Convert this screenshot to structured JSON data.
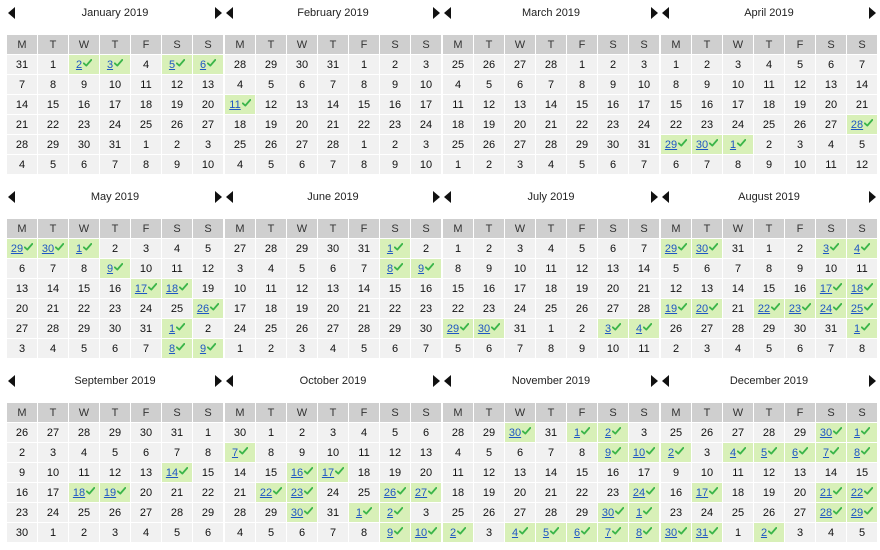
{
  "weekdays": [
    "M",
    "T",
    "W",
    "T",
    "F",
    "S",
    "S"
  ],
  "months": [
    {
      "title": "January 2019",
      "weeks": [
        [
          "31",
          "1",
          "2",
          "3",
          "4",
          "5",
          "6"
        ],
        [
          "7",
          "8",
          "9",
          "10",
          "11",
          "12",
          "13"
        ],
        [
          "14",
          "15",
          "16",
          "17",
          "18",
          "19",
          "20"
        ],
        [
          "21",
          "22",
          "23",
          "24",
          "25",
          "26",
          "27"
        ],
        [
          "28",
          "29",
          "30",
          "31",
          "1",
          "2",
          "3"
        ],
        [
          "4",
          "5",
          "6",
          "7",
          "8",
          "9",
          "10"
        ]
      ],
      "available": [
        "0-2",
        "0-3",
        "0-5",
        "0-6"
      ]
    },
    {
      "title": "February 2019",
      "weeks": [
        [
          "28",
          "29",
          "30",
          "31",
          "1",
          "2",
          "3"
        ],
        [
          "4",
          "5",
          "6",
          "7",
          "8",
          "9",
          "10"
        ],
        [
          "11",
          "12",
          "13",
          "14",
          "15",
          "16",
          "17"
        ],
        [
          "18",
          "19",
          "20",
          "21",
          "22",
          "23",
          "24"
        ],
        [
          "25",
          "26",
          "27",
          "28",
          "1",
          "2",
          "3"
        ],
        [
          "4",
          "5",
          "6",
          "7",
          "8",
          "9",
          "10"
        ]
      ],
      "available": [
        "2-0"
      ]
    },
    {
      "title": "March 2019",
      "weeks": [
        [
          "25",
          "26",
          "27",
          "28",
          "1",
          "2",
          "3"
        ],
        [
          "4",
          "5",
          "6",
          "7",
          "8",
          "9",
          "10"
        ],
        [
          "11",
          "12",
          "13",
          "14",
          "15",
          "16",
          "17"
        ],
        [
          "18",
          "19",
          "20",
          "21",
          "22",
          "23",
          "24"
        ],
        [
          "25",
          "26",
          "27",
          "28",
          "29",
          "30",
          "31"
        ],
        [
          "1",
          "2",
          "3",
          "4",
          "5",
          "6",
          "7"
        ]
      ],
      "available": []
    },
    {
      "title": "April 2019",
      "weeks": [
        [
          "1",
          "2",
          "3",
          "4",
          "5",
          "6",
          "7"
        ],
        [
          "8",
          "9",
          "10",
          "11",
          "12",
          "13",
          "14"
        ],
        [
          "15",
          "16",
          "17",
          "18",
          "19",
          "20",
          "21"
        ],
        [
          "22",
          "23",
          "24",
          "25",
          "26",
          "27",
          "28"
        ],
        [
          "29",
          "30",
          "1",
          "2",
          "3",
          "4",
          "5"
        ],
        [
          "6",
          "7",
          "8",
          "9",
          "10",
          "11",
          "12"
        ]
      ],
      "available": [
        "3-6",
        "4-0",
        "4-1",
        "4-2"
      ]
    },
    {
      "title": "May 2019",
      "weeks": [
        [
          "29",
          "30",
          "1",
          "2",
          "3",
          "4",
          "5"
        ],
        [
          "6",
          "7",
          "8",
          "9",
          "10",
          "11",
          "12"
        ],
        [
          "13",
          "14",
          "15",
          "16",
          "17",
          "18",
          "19"
        ],
        [
          "20",
          "21",
          "22",
          "23",
          "24",
          "25",
          "26"
        ],
        [
          "27",
          "28",
          "29",
          "30",
          "31",
          "1",
          "2"
        ],
        [
          "3",
          "4",
          "5",
          "6",
          "7",
          "8",
          "9"
        ]
      ],
      "available": [
        "0-0",
        "0-1",
        "0-2",
        "1-3",
        "2-4",
        "2-5",
        "3-6",
        "4-5",
        "5-5",
        "5-6"
      ]
    },
    {
      "title": "June 2019",
      "weeks": [
        [
          "27",
          "28",
          "29",
          "30",
          "31",
          "1",
          "2"
        ],
        [
          "3",
          "4",
          "5",
          "6",
          "7",
          "8",
          "9"
        ],
        [
          "10",
          "11",
          "12",
          "13",
          "14",
          "15",
          "16"
        ],
        [
          "17",
          "18",
          "19",
          "20",
          "21",
          "22",
          "23"
        ],
        [
          "24",
          "25",
          "26",
          "27",
          "28",
          "29",
          "30"
        ],
        [
          "1",
          "2",
          "3",
          "4",
          "5",
          "6",
          "7"
        ]
      ],
      "available": [
        "0-5",
        "1-5",
        "1-6"
      ]
    },
    {
      "title": "July 2019",
      "weeks": [
        [
          "1",
          "2",
          "3",
          "4",
          "5",
          "6",
          "7"
        ],
        [
          "8",
          "9",
          "10",
          "11",
          "12",
          "13",
          "14"
        ],
        [
          "15",
          "16",
          "17",
          "18",
          "19",
          "20",
          "21"
        ],
        [
          "22",
          "23",
          "24",
          "25",
          "26",
          "27",
          "28"
        ],
        [
          "29",
          "30",
          "31",
          "1",
          "2",
          "3",
          "4"
        ],
        [
          "5",
          "6",
          "7",
          "8",
          "9",
          "10",
          "11"
        ]
      ],
      "available": [
        "4-0",
        "4-1",
        "4-5",
        "4-6"
      ]
    },
    {
      "title": "August 2019",
      "weeks": [
        [
          "29",
          "30",
          "31",
          "1",
          "2",
          "3",
          "4"
        ],
        [
          "5",
          "6",
          "7",
          "8",
          "9",
          "10",
          "11"
        ],
        [
          "12",
          "13",
          "14",
          "15",
          "16",
          "17",
          "18"
        ],
        [
          "19",
          "20",
          "21",
          "22",
          "23",
          "24",
          "25"
        ],
        [
          "26",
          "27",
          "28",
          "29",
          "30",
          "31",
          "1"
        ],
        [
          "2",
          "3",
          "4",
          "5",
          "6",
          "7",
          "8"
        ]
      ],
      "available": [
        "0-0",
        "0-1",
        "0-5",
        "0-6",
        "2-5",
        "2-6",
        "3-0",
        "3-1",
        "3-3",
        "3-4",
        "3-5",
        "3-6",
        "4-6"
      ]
    },
    {
      "title": "September 2019",
      "weeks": [
        [
          "26",
          "27",
          "28",
          "29",
          "30",
          "31",
          "1"
        ],
        [
          "2",
          "3",
          "4",
          "5",
          "6",
          "7",
          "8"
        ],
        [
          "9",
          "10",
          "11",
          "12",
          "13",
          "14",
          "15"
        ],
        [
          "16",
          "17",
          "18",
          "19",
          "20",
          "21",
          "22"
        ],
        [
          "23",
          "24",
          "25",
          "26",
          "27",
          "28",
          "29"
        ],
        [
          "30",
          "1",
          "2",
          "3",
          "4",
          "5",
          "6"
        ]
      ],
      "available": [
        "2-5",
        "3-2",
        "3-3"
      ]
    },
    {
      "title": "October 2019",
      "weeks": [
        [
          "30",
          "1",
          "2",
          "3",
          "4",
          "5",
          "6"
        ],
        [
          "7",
          "8",
          "9",
          "10",
          "11",
          "12",
          "13"
        ],
        [
          "14",
          "15",
          "16",
          "17",
          "18",
          "19",
          "20"
        ],
        [
          "21",
          "22",
          "23",
          "24",
          "25",
          "26",
          "27"
        ],
        [
          "28",
          "29",
          "30",
          "31",
          "1",
          "2",
          "3"
        ],
        [
          "4",
          "5",
          "6",
          "7",
          "8",
          "9",
          "10"
        ]
      ],
      "available": [
        "1-0",
        "2-2",
        "2-3",
        "3-1",
        "3-2",
        "3-5",
        "3-6",
        "4-2",
        "4-4",
        "4-5",
        "5-5",
        "5-6"
      ]
    },
    {
      "title": "November 2019",
      "weeks": [
        [
          "28",
          "29",
          "30",
          "31",
          "1",
          "2",
          "3"
        ],
        [
          "4",
          "5",
          "6",
          "7",
          "8",
          "9",
          "10"
        ],
        [
          "11",
          "12",
          "13",
          "14",
          "15",
          "16",
          "17"
        ],
        [
          "18",
          "19",
          "20",
          "21",
          "22",
          "23",
          "24"
        ],
        [
          "25",
          "26",
          "27",
          "28",
          "29",
          "30",
          "1"
        ],
        [
          "2",
          "3",
          "4",
          "5",
          "6",
          "7",
          "8"
        ]
      ],
      "available": [
        "0-2",
        "0-4",
        "0-5",
        "1-5",
        "1-6",
        "3-6",
        "4-5",
        "4-6",
        "5-0",
        "5-2",
        "5-3",
        "5-4",
        "5-5",
        "5-6"
      ]
    },
    {
      "title": "December 2019",
      "weeks": [
        [
          "25",
          "26",
          "27",
          "28",
          "29",
          "30",
          "1"
        ],
        [
          "2",
          "3",
          "4",
          "5",
          "6",
          "7",
          "8"
        ],
        [
          "9",
          "10",
          "11",
          "12",
          "13",
          "14",
          "15"
        ],
        [
          "16",
          "17",
          "18",
          "19",
          "20",
          "21",
          "22"
        ],
        [
          "23",
          "24",
          "25",
          "26",
          "27",
          "28",
          "29"
        ],
        [
          "30",
          "31",
          "1",
          "2",
          "3",
          "4",
          "5"
        ]
      ],
      "available": [
        "0-5",
        "0-6",
        "1-0",
        "1-2",
        "1-3",
        "1-4",
        "1-5",
        "1-6",
        "3-1",
        "3-5",
        "3-6",
        "4-5",
        "4-6",
        "5-0",
        "5-1",
        "5-3"
      ]
    }
  ]
}
